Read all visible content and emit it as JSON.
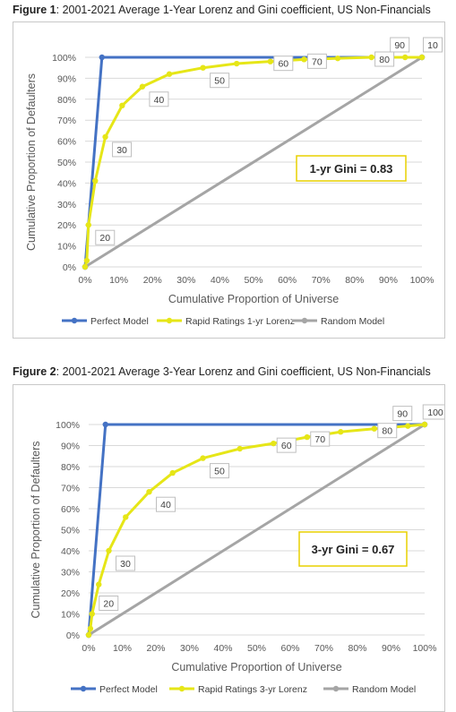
{
  "figures": [
    {
      "label": "Figure 1",
      "caption": ": 2001-2021 Average 1-Year Lorenz and Gini coefficient, US Non-Financials",
      "gini_text": "1-yr Gini = 0.83"
    },
    {
      "label": "Figure 2",
      "caption": ": 2001-2021 Average 3-Year Lorenz and Gini coefficient, US Non-Financials",
      "gini_text": "3-yr Gini = 0.67"
    }
  ],
  "colors": {
    "perfect": "#4472C4",
    "lorenz": "#E6E617",
    "random": "#A5A5A5",
    "gini_border": "#E8D000",
    "grid": "#D9D9D9"
  },
  "chart_data": [
    {
      "type": "line",
      "xlabel": "Cumulative Proportion of Universe",
      "ylabel": "Cumulative Proportion of Defaulters",
      "xlim": [
        0,
        100
      ],
      "ylim": [
        0,
        100
      ],
      "x_ticks": [
        "0%",
        "10%",
        "20%",
        "30%",
        "40%",
        "50%",
        "60%",
        "70%",
        "80%",
        "90%",
        "100%"
      ],
      "y_ticks": [
        "0%",
        "10%",
        "20%",
        "30%",
        "40%",
        "50%",
        "60%",
        "70%",
        "80%",
        "90%",
        "100%"
      ],
      "grid": "horizontal",
      "legend_position": "bottom",
      "series": [
        {
          "name": "Perfect Model",
          "color": "#4472C4",
          "x": [
            0,
            5,
            100
          ],
          "y": [
            0,
            100,
            100
          ]
        },
        {
          "name": "Rapid Ratings 1-yr Lorenz",
          "color": "#E6E617",
          "x": [
            0,
            0.5,
            1,
            3,
            6,
            11,
            17,
            25,
            35,
            45,
            55,
            65,
            75,
            85,
            95,
            100
          ],
          "y": [
            0,
            3,
            20,
            41,
            62,
            77,
            86,
            92,
            95,
            97,
            98,
            99,
            99.5,
            100,
            100,
            100
          ]
        },
        {
          "name": "Random Model",
          "color": "#A5A5A5",
          "x": [
            0,
            100
          ],
          "y": [
            0,
            100
          ]
        }
      ],
      "annotations": [
        {
          "text": "20",
          "x": 1,
          "y": 20
        },
        {
          "text": "30",
          "x": 6,
          "y": 62
        },
        {
          "text": "40",
          "x": 17,
          "y": 86
        },
        {
          "text": "50",
          "x": 35,
          "y": 95
        },
        {
          "text": "60",
          "x": 55,
          "y": 98
        },
        {
          "text": "70",
          "x": 65,
          "y": 99
        },
        {
          "text": "80",
          "x": 85,
          "y": 100
        },
        {
          "text": "90",
          "x": 95,
          "y": 100
        },
        {
          "text": "10",
          "x": 100,
          "y": 100
        }
      ]
    },
    {
      "type": "line",
      "xlabel": "Cumulative Proportion of Universe",
      "ylabel": "Cumulative Proportion of Defaulters",
      "xlim": [
        0,
        100
      ],
      "ylim": [
        0,
        100
      ],
      "x_ticks": [
        "0%",
        "10%",
        "20%",
        "30%",
        "40%",
        "50%",
        "60%",
        "70%",
        "80%",
        "90%",
        "100%"
      ],
      "y_ticks": [
        "0%",
        "10%",
        "20%",
        "30%",
        "40%",
        "50%",
        "60%",
        "70%",
        "80%",
        "90%",
        "100%"
      ],
      "grid": "horizontal",
      "legend_position": "bottom",
      "series": [
        {
          "name": "Perfect Model",
          "color": "#4472C4",
          "x": [
            0,
            5,
            100
          ],
          "y": [
            0,
            100,
            100
          ]
        },
        {
          "name": "Rapid Ratings 3-yr Lorenz",
          "color": "#E6E617",
          "x": [
            0,
            0.5,
            1,
            3,
            6,
            11,
            18,
            25,
            34,
            45,
            55,
            65,
            75,
            85,
            95,
            100
          ],
          "y": [
            0,
            3,
            10,
            24,
            40,
            56,
            68,
            77,
            84,
            88.5,
            91,
            94,
            96.5,
            98,
            99.3,
            100
          ]
        },
        {
          "name": "Random Model",
          "color": "#A5A5A5",
          "x": [
            0,
            100
          ],
          "y": [
            0,
            100
          ]
        }
      ],
      "annotations": [
        {
          "text": "20",
          "x": 1,
          "y": 10
        },
        {
          "text": "30",
          "x": 6,
          "y": 40
        },
        {
          "text": "40",
          "x": 18,
          "y": 68
        },
        {
          "text": "50",
          "x": 34,
          "y": 84
        },
        {
          "text": "60",
          "x": 55,
          "y": 91
        },
        {
          "text": "70",
          "x": 65,
          "y": 94
        },
        {
          "text": "80",
          "x": 85,
          "y": 98
        },
        {
          "text": "90",
          "x": 95,
          "y": 99.3
        },
        {
          "text": "100",
          "x": 100,
          "y": 100
        }
      ]
    }
  ]
}
